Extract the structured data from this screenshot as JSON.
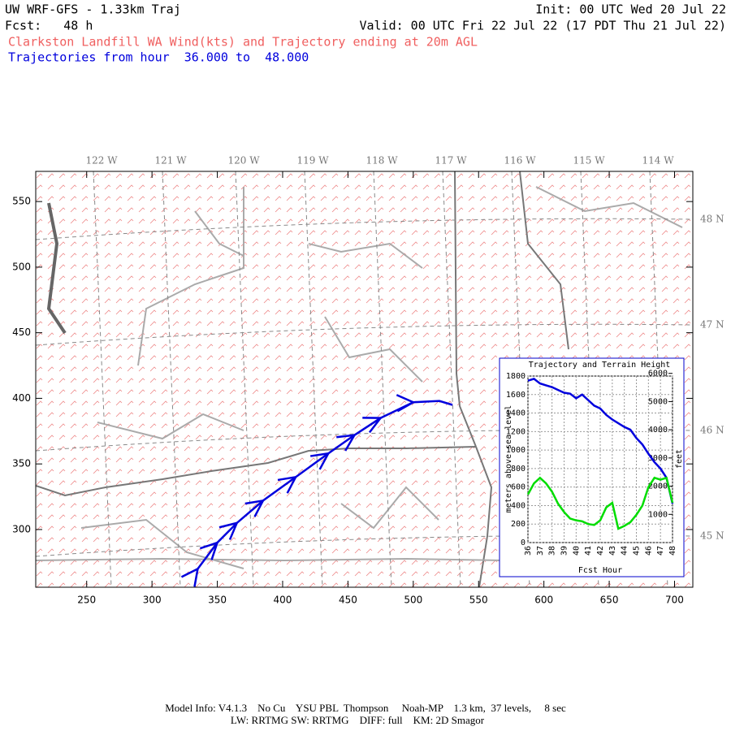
{
  "header": {
    "model": "UW WRF-GFS - 1.33km Traj",
    "init": "Init: 00 UTC Wed 20 Jul 22",
    "fcst": "Fcst:   48 h",
    "valid": "Valid: 00 UTC Fri 22 Jul 22 (17 PDT Thu 21 Jul 22)",
    "description": "Clarkston Landfill WA Wind(kts) and Trajectory ending at 20m AGL",
    "trajectory_hours": "Trajectories from hour  36.000 to  48.000"
  },
  "map": {
    "xlim": [
      211,
      714
    ],
    "ylim": [
      256,
      573
    ],
    "xticks": [
      250,
      300,
      350,
      400,
      450,
      500,
      550,
      600,
      650,
      700
    ],
    "yticks": [
      300,
      350,
      400,
      450,
      500,
      550
    ],
    "lon_labels": [
      "122 W",
      "121 W",
      "120 W",
      "119 W",
      "118 W",
      "117 W",
      "116 W",
      "115 W",
      "114 W"
    ],
    "lat_labels": [
      "48 N",
      "47 N",
      "46 N",
      "45 N"
    ],
    "trajectory": {
      "color": "#0000dd",
      "x": [
        335,
        350,
        365,
        385,
        410,
        435,
        455,
        475,
        500,
        520,
        530
      ],
      "y": [
        270,
        290,
        305,
        322,
        340,
        358,
        372,
        385,
        397,
        398,
        395
      ]
    }
  },
  "chart_data": {
    "type": "line",
    "title": "Trajectory and Terrain Height",
    "x_label": "Fcst Hour",
    "y_label": "meters above sea level",
    "y2_label": "feet",
    "x": [
      36,
      36.5,
      37,
      37.5,
      38,
      38.5,
      39,
      39.5,
      40,
      40.5,
      41,
      41.5,
      42,
      42.5,
      43,
      43.5,
      44,
      44.5,
      45,
      45.5,
      46,
      46.5,
      47,
      47.5,
      48
    ],
    "series": [
      {
        "color": "#0000dd",
        "values": [
          1750,
          1770,
          1720,
          1700,
          1680,
          1650,
          1620,
          1610,
          1560,
          1600,
          1540,
          1480,
          1450,
          1380,
          1330,
          1290,
          1250,
          1220,
          1130,
          1060,
          960,
          870,
          800,
          700,
          420
        ]
      },
      {
        "color": "#00dd00",
        "values": [
          520,
          640,
          700,
          640,
          550,
          420,
          330,
          260,
          240,
          230,
          200,
          190,
          240,
          380,
          430,
          150,
          180,
          220,
          300,
          400,
          600,
          700,
          680,
          700,
          430
        ]
      }
    ],
    "xlim": [
      36,
      48
    ],
    "xticks": [
      36,
      37,
      38,
      39,
      40,
      41,
      42,
      43,
      44,
      45,
      46,
      47,
      48
    ],
    "ylim": [
      0,
      1800
    ],
    "yticks": [
      0,
      200,
      400,
      600,
      800,
      1000,
      1200,
      1400,
      1600,
      1800
    ],
    "y2lim": [
      0,
      5905
    ],
    "y2ticks": [
      1000,
      2000,
      3000,
      4000,
      5000,
      6000
    ],
    "grid": true
  },
  "footer": {
    "line1": "Model Info: V4.1.3    No Cu    YSU PBL  Thompson     Noah-MP    1.3 km,  37 levels,     8 sec",
    "line2": "LW: RRTMG SW: RRTMG    DIFF: full    KM: 2D Smagor"
  }
}
